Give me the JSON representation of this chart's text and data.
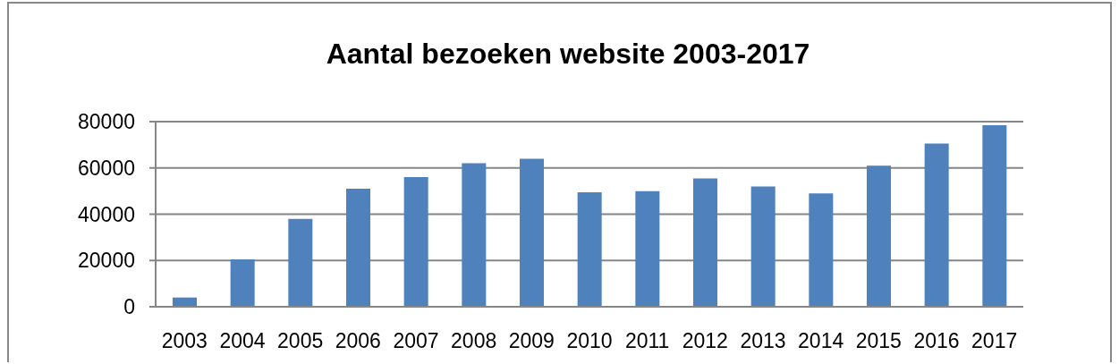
{
  "chart_data": {
    "type": "bar",
    "title": "Aantal bezoeken website 2003-2017",
    "categories": [
      "2003",
      "2004",
      "2005",
      "2006",
      "2007",
      "2008",
      "2009",
      "2010",
      "2011",
      "2012",
      "2013",
      "2014",
      "2015",
      "2016",
      "2017"
    ],
    "values": [
      4000,
      20500,
      38000,
      51000,
      56000,
      62000,
      64000,
      49500,
      50000,
      55500,
      52000,
      49000,
      61000,
      70500,
      78500
    ],
    "color": "#4f81bd",
    "ylim": [
      0,
      80000
    ],
    "yticks": [
      0,
      20000,
      40000,
      60000,
      80000
    ],
    "grid": "y"
  }
}
